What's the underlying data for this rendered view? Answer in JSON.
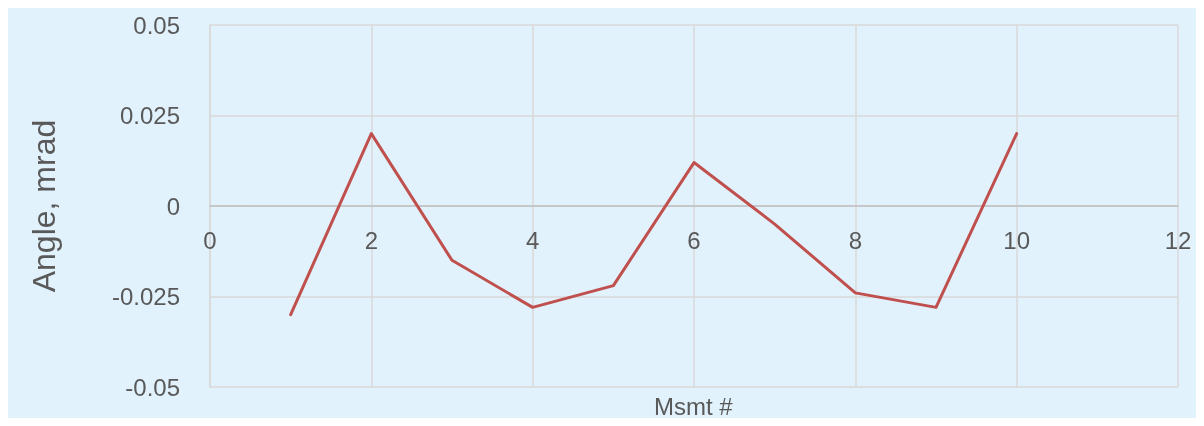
{
  "chart_data": {
    "type": "line",
    "xlabel": "Msmt #",
    "ylabel": "Angle, mrad",
    "x": [
      1,
      2,
      3,
      4,
      5,
      6,
      7,
      8,
      9,
      10
    ],
    "series": [
      {
        "color": "#c0504d",
        "values": [
          -0.03,
          0.02,
          -0.015,
          -0.028,
          -0.022,
          0.012,
          -0.005,
          -0.024,
          -0.028,
          0.02
        ]
      }
    ],
    "xlim": [
      0,
      12
    ],
    "xticks": [
      0,
      2,
      4,
      6,
      8,
      10,
      12
    ],
    "ylim": [
      -0.05,
      0.05
    ],
    "yticks": [
      -0.05,
      -0.025,
      0,
      0.025,
      0.05
    ],
    "grid": true,
    "marker": "none",
    "line_style": "solid"
  }
}
